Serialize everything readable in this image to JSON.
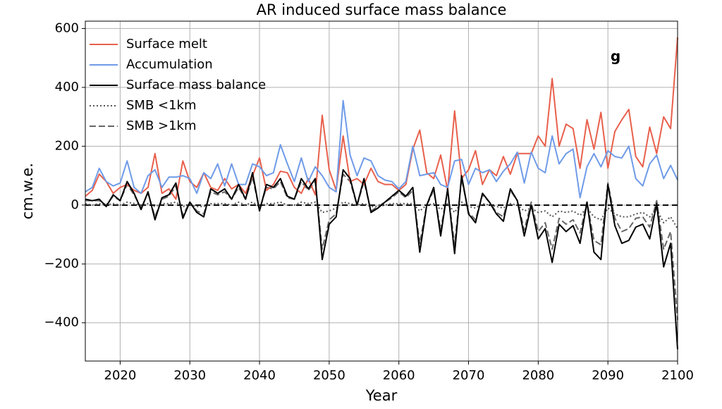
{
  "chart_data": {
    "type": "line",
    "title": "AR induced surface mass balance",
    "xlabel": "Year",
    "ylabel": "cm.w.e.",
    "annotation": "g",
    "x": [
      2015,
      2016,
      2017,
      2018,
      2019,
      2020,
      2021,
      2022,
      2023,
      2024,
      2025,
      2026,
      2027,
      2028,
      2029,
      2030,
      2031,
      2032,
      2033,
      2034,
      2035,
      2036,
      2037,
      2038,
      2039,
      2040,
      2041,
      2042,
      2043,
      2044,
      2045,
      2046,
      2047,
      2048,
      2049,
      2050,
      2051,
      2052,
      2053,
      2054,
      2055,
      2056,
      2057,
      2058,
      2059,
      2060,
      2061,
      2062,
      2063,
      2064,
      2065,
      2066,
      2067,
      2068,
      2069,
      2070,
      2071,
      2072,
      2073,
      2074,
      2075,
      2076,
      2077,
      2078,
      2079,
      2080,
      2081,
      2082,
      2083,
      2084,
      2085,
      2086,
      2087,
      2088,
      2089,
      2090,
      2091,
      2092,
      2093,
      2094,
      2095,
      2096,
      2097,
      2098,
      2099,
      2100
    ],
    "series": [
      {
        "name": "Surface melt",
        "color": "#e8604c",
        "dash": "solid",
        "values": [
          30,
          50,
          105,
          80,
          40,
          60,
          70,
          50,
          40,
          60,
          175,
          40,
          55,
          20,
          150,
          80,
          60,
          110,
          60,
          50,
          90,
          55,
          70,
          40,
          100,
          160,
          50,
          70,
          115,
          110,
          60,
          40,
          90,
          35,
          305,
          120,
          50,
          235,
          80,
          90,
          70,
          125,
          80,
          70,
          70,
          50,
          70,
          190,
          255,
          110,
          90,
          170,
          50,
          320,
          90,
          120,
          185,
          70,
          120,
          100,
          165,
          105,
          175,
          175,
          175,
          235,
          200,
          430,
          200,
          275,
          260,
          125,
          290,
          190,
          315,
          125,
          250,
          290,
          325,
          165,
          130,
          265,
          175,
          300,
          260,
          570
        ]
      },
      {
        "name": "Accumulation",
        "color": "#6f9be8",
        "dash": "solid",
        "values": [
          45,
          60,
          125,
          80,
          65,
          75,
          150,
          60,
          40,
          100,
          120,
          60,
          95,
          95,
          100,
          90,
          40,
          110,
          90,
          140,
          65,
          140,
          70,
          70,
          140,
          130,
          100,
          110,
          205,
          140,
          80,
          160,
          80,
          130,
          100,
          60,
          45,
          355,
          170,
          100,
          160,
          150,
          100,
          85,
          80,
          55,
          80,
          200,
          100,
          105,
          110,
          70,
          60,
          150,
          155,
          70,
          125,
          110,
          120,
          80,
          115,
          140,
          180,
          75,
          180,
          125,
          110,
          235,
          140,
          175,
          190,
          25,
          130,
          175,
          130,
          185,
          165,
          160,
          200,
          90,
          65,
          140,
          170,
          90,
          135,
          85
        ]
      },
      {
        "name": "Surface mass balance",
        "color": "#000000",
        "dash": "solid",
        "values": [
          20,
          15,
          20,
          -5,
          35,
          15,
          80,
          40,
          -15,
          45,
          -50,
          25,
          35,
          75,
          -45,
          10,
          -25,
          -40,
          55,
          40,
          55,
          20,
          70,
          20,
          110,
          -20,
          70,
          60,
          90,
          30,
          20,
          90,
          55,
          90,
          -185,
          -65,
          -40,
          120,
          90,
          0,
          90,
          -25,
          -10,
          10,
          30,
          50,
          30,
          60,
          -160,
          0,
          60,
          -105,
          55,
          -165,
          100,
          -30,
          -60,
          40,
          10,
          -30,
          -55,
          55,
          15,
          -105,
          0,
          -115,
          -80,
          -195,
          -65,
          -90,
          -70,
          -130,
          10,
          -160,
          -185,
          70,
          -70,
          -130,
          -120,
          -75,
          -65,
          -115,
          5,
          -210,
          -130,
          -490
        ]
      },
      {
        "name": "SMB <1km",
        "color": "#555555",
        "dash": "dotted",
        "values": [
          5,
          0,
          5,
          0,
          5,
          0,
          10,
          5,
          0,
          5,
          -5,
          5,
          5,
          10,
          -5,
          0,
          -5,
          -5,
          5,
          5,
          5,
          0,
          10,
          0,
          10,
          -5,
          5,
          5,
          10,
          0,
          0,
          10,
          5,
          10,
          -25,
          -20,
          -10,
          10,
          5,
          0,
          5,
          -5,
          -5,
          0,
          5,
          5,
          5,
          5,
          -20,
          0,
          5,
          -15,
          5,
          -25,
          10,
          -5,
          -10,
          5,
          0,
          -5,
          -10,
          5,
          0,
          -20,
          -10,
          -25,
          -20,
          -40,
          -20,
          -25,
          -20,
          -35,
          -10,
          -40,
          -50,
          -10,
          -30,
          -40,
          -40,
          -30,
          -25,
          -40,
          -15,
          -60,
          -40,
          -80
        ]
      },
      {
        "name": "SMB >1km",
        "color": "#666666",
        "dash": "dashed",
        "values": [
          15,
          15,
          15,
          0,
          30,
          15,
          70,
          35,
          -10,
          40,
          -40,
          20,
          30,
          65,
          -35,
          10,
          -20,
          -30,
          45,
          35,
          45,
          20,
          60,
          20,
          95,
          -15,
          60,
          55,
          80,
          25,
          20,
          80,
          50,
          80,
          -150,
          -50,
          -30,
          105,
          80,
          0,
          80,
          -20,
          -5,
          10,
          25,
          45,
          25,
          50,
          -130,
          0,
          50,
          -85,
          50,
          -135,
          90,
          -25,
          -50,
          35,
          10,
          -25,
          -40,
          50,
          15,
          -85,
          10,
          -90,
          -60,
          -150,
          -45,
          -65,
          -50,
          -95,
          10,
          -120,
          -135,
          75,
          -45,
          -90,
          -80,
          -45,
          -40,
          -75,
          15,
          -150,
          -90,
          -390
        ]
      }
    ],
    "reference_line": 0,
    "xlim": [
      2015,
      2100
    ],
    "xticks": [
      2020,
      2030,
      2040,
      2050,
      2060,
      2070,
      2080,
      2090,
      2100
    ],
    "ylim": [
      -530,
      625
    ],
    "yticks": [
      {
        "value": -400,
        "label": "−400"
      },
      {
        "value": -200,
        "label": "−200"
      },
      0,
      200,
      400,
      600
    ],
    "grid": true,
    "legend": "upper left"
  }
}
